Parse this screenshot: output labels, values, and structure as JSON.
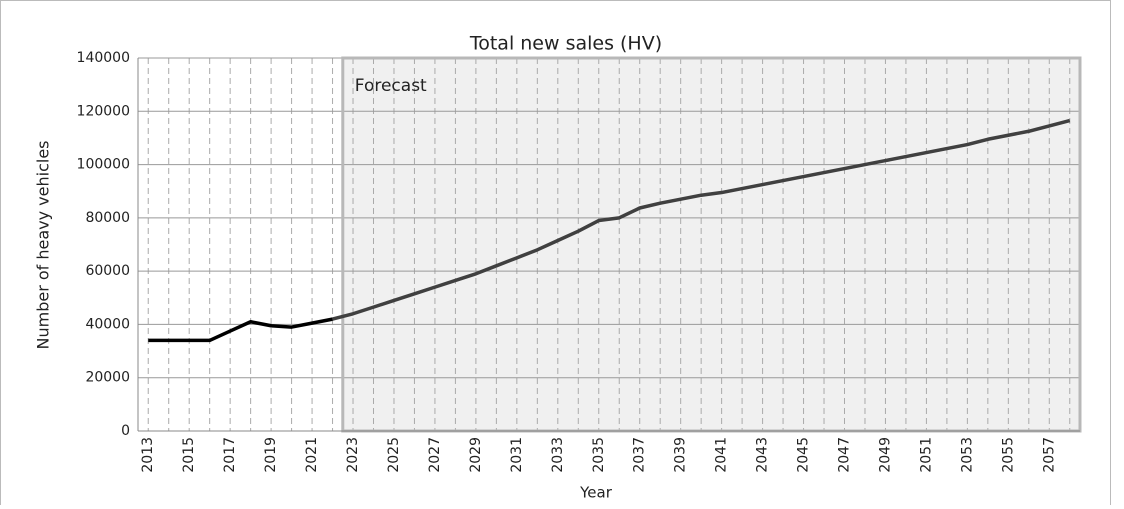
{
  "chart_data": {
    "type": "line",
    "title": "Total new sales (HV)",
    "x_label": "Year",
    "y_label": "Number of heavy vehicles",
    "annotation": "Forecast",
    "categories": [
      "2013",
      null,
      "2015",
      null,
      "2017",
      null,
      "2019",
      null,
      "2021",
      null,
      "2023",
      null,
      "2025",
      null,
      "2027",
      null,
      "2029",
      null,
      "2031",
      null,
      "2033",
      null,
      "2035",
      null,
      "2037",
      null,
      "2039",
      null,
      "2041",
      null,
      "2043",
      null,
      "2045",
      null,
      "2047",
      null,
      "2049",
      null,
      "2051",
      null,
      "2053",
      null,
      "2055",
      null,
      "2057",
      null
    ],
    "series": [
      {
        "color": "#000000",
        "values": [
          34000,
          34000,
          34000,
          34000,
          37500,
          41000,
          39500,
          39000,
          40500,
          42000,
          null,
          null,
          null,
          null,
          null,
          null,
          null,
          null,
          null,
          null,
          null,
          null,
          null,
          null,
          null,
          null,
          null,
          null,
          null,
          null,
          null,
          null,
          null,
          null,
          null,
          null,
          null,
          null,
          null,
          null,
          null,
          null,
          null,
          null,
          null,
          null
        ]
      },
      {
        "color": "#404040",
        "values": [
          null,
          null,
          null,
          null,
          null,
          null,
          null,
          null,
          null,
          42000,
          44000,
          46500,
          49000,
          51500,
          54000,
          56500,
          59000,
          62000,
          65000,
          68000,
          71500,
          75000,
          79000,
          80000,
          83700,
          85500,
          87000,
          88500,
          89500,
          91000,
          92500,
          94000,
          95500,
          97000,
          98500,
          100000,
          101500,
          103000,
          104500,
          106000,
          107500,
          109500,
          111000,
          112500,
          114500,
          116500
        ]
      }
    ],
    "ylim": [
      0,
      140000
    ],
    "yticks": [
      0,
      20000,
      40000,
      60000,
      80000,
      100000,
      120000,
      140000
    ],
    "grid": true,
    "forecast_fill": "#f0f0f0"
  }
}
